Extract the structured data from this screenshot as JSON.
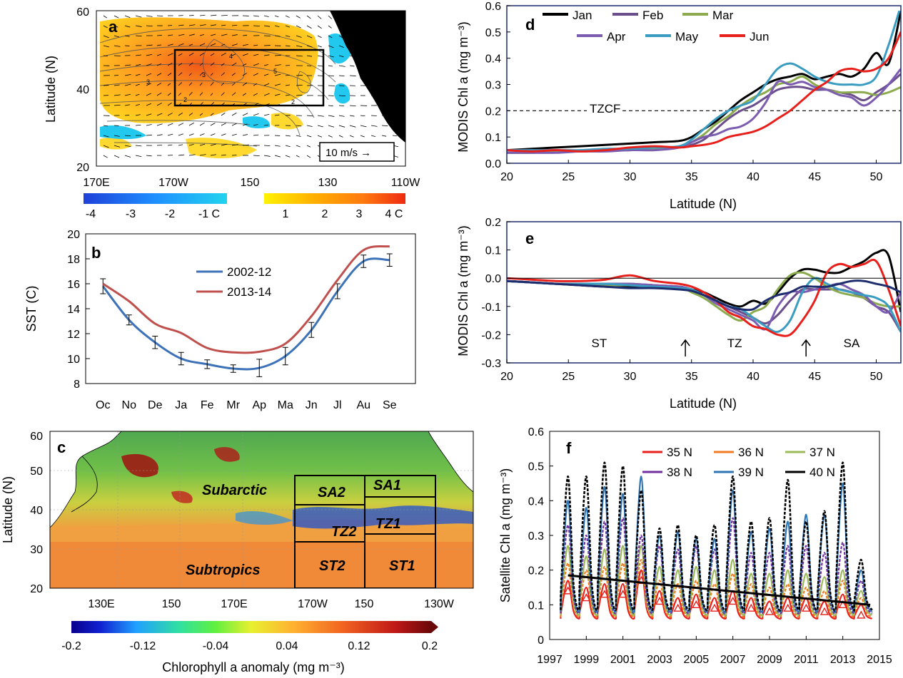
{
  "chart_data": [
    {
      "id": "a",
      "type": "heatmap",
      "panel_label": "a",
      "ylabel": "Latitude (N)",
      "xticks": [
        "170E",
        "170W",
        "150",
        "130",
        "110W"
      ],
      "yticks": [
        "60",
        "40",
        "20"
      ],
      "ylim": [
        20,
        60
      ],
      "xlim": [
        "160E",
        "110W"
      ],
      "box": {
        "lon": [
          "170W",
          "130W"
        ],
        "lat": [
          35,
          50
        ]
      },
      "arrow_key": "10 m/s →",
      "colorbar_neg": {
        "labels": [
          "-4",
          "-3",
          "-2",
          "-1 C"
        ],
        "range": [
          -4,
          -1
        ],
        "colors": [
          "#1e40d8",
          "#1e90ff",
          "#22d3ee"
        ]
      },
      "colorbar_pos": {
        "labels": [
          "1",
          "2",
          "3",
          "4 C"
        ],
        "range": [
          1,
          4
        ],
        "colors": [
          "#fff200",
          "#ffb000",
          "#ff7a10",
          "#ee2a10"
        ]
      },
      "contour_labels": [
        "3",
        "5",
        "3",
        "2",
        "2",
        "4"
      ]
    },
    {
      "id": "b",
      "type": "line",
      "panel_label": "b",
      "ylabel": "SST (C)",
      "categories": [
        "Oc",
        "No",
        "De",
        "Ja",
        "Fe",
        "Mr",
        "Ap",
        "Ma",
        "Jn",
        "Jl",
        "Au",
        "Se"
      ],
      "ylim": [
        8,
        20
      ],
      "yticks": [
        8,
        10,
        12,
        14,
        16,
        18,
        20
      ],
      "legend_position": "top-left",
      "series": [
        {
          "name": "2002-12",
          "color": "#3d72b8",
          "values": [
            15.8,
            13.1,
            11.3,
            10.0,
            9.55,
            9.2,
            9.25,
            10.2,
            12.3,
            15.4,
            17.8,
            17.9
          ],
          "err": [
            0.6,
            0.4,
            0.5,
            0.5,
            0.35,
            0.3,
            0.7,
            0.7,
            0.6,
            0.6,
            0.5,
            0.5
          ]
        },
        {
          "name": "2013-14",
          "color": "#c0504d",
          "values": [
            16.0,
            14.6,
            12.8,
            12.05,
            10.85,
            10.5,
            10.55,
            11.2,
            13.4,
            16.3,
            18.7,
            19.0
          ]
        }
      ]
    },
    {
      "id": "c",
      "type": "heatmap",
      "panel_label": "c",
      "ylabel": "Latitude (N)",
      "xticks": [
        "130E",
        "150",
        "170E",
        "170W",
        "150",
        "130W"
      ],
      "yticks": [
        "60",
        "50",
        "40",
        "30",
        "20"
      ],
      "ylim": [
        20,
        60
      ],
      "region_labels": [
        "Subarctic",
        "Subtropics",
        "SA2",
        "SA1",
        "TZ2",
        "TZ1",
        "ST2",
        "ST1"
      ],
      "colorbar": {
        "label": "Chlorophyll a anomaly (mg m⁻³)",
        "ticks": [
          "-0.2",
          "-0.12",
          "-0.04",
          "0.04",
          "0.12",
          "0.2"
        ],
        "range": [
          -0.2,
          0.2
        ]
      }
    },
    {
      "id": "d",
      "type": "line",
      "panel_label": "d",
      "xlabel": "Latitude (N)",
      "ylabel": "MODIS Chl a (mg m⁻³)",
      "xlim": [
        20,
        52
      ],
      "ylim": [
        0,
        0.6
      ],
      "xticks": [
        20,
        25,
        30,
        35,
        40,
        45,
        50
      ],
      "yticks": [
        0.0,
        0.1,
        0.2,
        0.3,
        0.4,
        0.5,
        0.6
      ],
      "hline": {
        "y": 0.2,
        "label": "TZCF"
      },
      "legend_position": "top",
      "x": [
        20,
        22,
        24,
        26,
        28,
        30,
        32,
        34,
        35,
        36,
        37,
        38,
        39,
        40,
        41,
        42,
        43,
        44,
        45,
        46,
        47,
        48,
        49,
        50,
        51,
        52
      ],
      "series": [
        {
          "name": "Jan",
          "color": "#000000",
          "values": [
            0.05,
            0.055,
            0.06,
            0.065,
            0.07,
            0.075,
            0.08,
            0.085,
            0.1,
            0.13,
            0.16,
            0.2,
            0.24,
            0.27,
            0.3,
            0.32,
            0.33,
            0.34,
            0.32,
            0.33,
            0.34,
            0.33,
            0.36,
            0.42,
            0.38,
            0.58
          ]
        },
        {
          "name": "Feb",
          "color": "#6b4f8c",
          "values": [
            0.04,
            0.04,
            0.045,
            0.045,
            0.05,
            0.05,
            0.055,
            0.06,
            0.07,
            0.09,
            0.13,
            0.17,
            0.2,
            0.22,
            0.25,
            0.28,
            0.29,
            0.29,
            0.28,
            0.28,
            0.27,
            0.26,
            0.24,
            0.27,
            0.3,
            0.34
          ]
        },
        {
          "name": "Mar",
          "color": "#8cab4e",
          "values": [
            0.04,
            0.04,
            0.045,
            0.045,
            0.05,
            0.05,
            0.055,
            0.06,
            0.08,
            0.11,
            0.15,
            0.18,
            0.22,
            0.25,
            0.27,
            0.3,
            0.31,
            0.33,
            0.3,
            0.28,
            0.27,
            0.27,
            0.27,
            0.26,
            0.27,
            0.29
          ]
        },
        {
          "name": "Apr",
          "color": "#7b5cb0",
          "values": [
            0.04,
            0.04,
            0.04,
            0.045,
            0.045,
            0.05,
            0.05,
            0.06,
            0.08,
            0.1,
            0.11,
            0.13,
            0.14,
            0.17,
            0.23,
            0.31,
            0.3,
            0.31,
            0.29,
            0.28,
            0.26,
            0.25,
            0.22,
            0.25,
            0.3,
            0.36
          ]
        },
        {
          "name": "May",
          "color": "#3a9cc0",
          "values": [
            0.05,
            0.05,
            0.05,
            0.05,
            0.055,
            0.055,
            0.06,
            0.065,
            0.09,
            0.13,
            0.17,
            0.2,
            0.22,
            0.24,
            0.3,
            0.36,
            0.38,
            0.36,
            0.33,
            0.31,
            0.3,
            0.3,
            0.3,
            0.33,
            0.45,
            0.6
          ]
        },
        {
          "name": "Jun",
          "color": "#e8201c",
          "values": [
            0.05,
            0.045,
            0.05,
            0.045,
            0.05,
            0.06,
            0.065,
            0.06,
            0.065,
            0.07,
            0.08,
            0.1,
            0.11,
            0.12,
            0.14,
            0.17,
            0.2,
            0.24,
            0.28,
            0.31,
            0.35,
            0.36,
            0.35,
            0.36,
            0.4,
            0.5
          ]
        }
      ]
    },
    {
      "id": "e",
      "type": "line",
      "panel_label": "e",
      "xlabel": "Latitude (N)",
      "ylabel": "MODIS Chl a (mg m⁻³)",
      "xlim": [
        20,
        52
      ],
      "ylim": [
        -0.3,
        0.2
      ],
      "xticks": [
        20,
        25,
        30,
        35,
        40,
        45,
        50
      ],
      "yticks": [
        -0.3,
        -0.2,
        -0.1,
        0.0,
        0.1,
        0.2
      ],
      "zone_labels": [
        {
          "text": "ST",
          "x": 27.5
        },
        {
          "text": "TZ",
          "x": 38.5
        },
        {
          "text": "SA",
          "x": 48
        }
      ],
      "zone_arrows": [
        34.5,
        44.3
      ],
      "x": [
        20,
        22,
        24,
        26,
        28,
        30,
        32,
        34,
        35,
        36,
        37,
        38,
        39,
        40,
        41,
        42,
        43,
        44,
        45,
        46,
        47,
        48,
        49,
        50,
        51,
        52
      ],
      "series": [
        {
          "name": "Jan",
          "color": "#000000",
          "values": [
            -0.01,
            -0.015,
            -0.02,
            -0.025,
            -0.03,
            -0.03,
            -0.03,
            -0.03,
            -0.04,
            -0.05,
            -0.07,
            -0.09,
            -0.1,
            -0.08,
            -0.09,
            -0.05,
            0.0,
            0.03,
            0.03,
            0.02,
            0.02,
            0.04,
            0.06,
            0.09,
            0.08,
            -0.12
          ]
        },
        {
          "name": "Feb",
          "color": "#6b4f8c",
          "values": [
            -0.01,
            -0.015,
            -0.02,
            -0.02,
            -0.02,
            -0.02,
            -0.025,
            -0.03,
            -0.04,
            -0.06,
            -0.08,
            -0.1,
            -0.12,
            -0.14,
            -0.16,
            -0.13,
            -0.08,
            -0.04,
            -0.04,
            -0.04,
            -0.04,
            -0.05,
            -0.07,
            -0.1,
            -0.12,
            -0.19
          ]
        },
        {
          "name": "Mar",
          "color": "#8cab4e",
          "values": [
            -0.01,
            -0.015,
            -0.02,
            -0.02,
            -0.025,
            -0.025,
            -0.03,
            -0.03,
            -0.05,
            -0.07,
            -0.1,
            -0.13,
            -0.15,
            -0.12,
            -0.1,
            -0.04,
            0.01,
            0.02,
            0.0,
            -0.03,
            -0.05,
            -0.06,
            -0.07,
            -0.09,
            -0.1,
            -0.1
          ]
        },
        {
          "name": "Apr",
          "color": "#7b5cb0",
          "values": [
            -0.01,
            -0.015,
            -0.02,
            -0.02,
            -0.02,
            -0.02,
            -0.025,
            -0.03,
            -0.04,
            -0.06,
            -0.09,
            -0.11,
            -0.13,
            -0.15,
            -0.18,
            -0.1,
            -0.05,
            -0.05,
            -0.04,
            -0.03,
            -0.02,
            -0.04,
            -0.06,
            -0.1,
            -0.12,
            -0.05
          ]
        },
        {
          "name": "May",
          "color": "#3a9cc0",
          "values": [
            -0.01,
            -0.015,
            -0.02,
            -0.02,
            -0.02,
            -0.025,
            -0.03,
            -0.035,
            -0.04,
            -0.06,
            -0.08,
            -0.1,
            -0.11,
            -0.14,
            -0.17,
            -0.19,
            -0.15,
            -0.05,
            0.0,
            -0.02,
            -0.04,
            -0.05,
            -0.06,
            -0.07,
            -0.1,
            -0.19
          ]
        },
        {
          "name": "Jun",
          "color": "#e8201c",
          "values": [
            0.0,
            -0.005,
            -0.01,
            -0.01,
            -0.005,
            0.01,
            -0.01,
            -0.02,
            -0.03,
            -0.05,
            -0.08,
            -0.12,
            -0.14,
            -0.17,
            -0.18,
            -0.2,
            -0.2,
            -0.15,
            -0.08,
            0.02,
            0.05,
            0.04,
            0.05,
            0.06,
            -0.04,
            -0.17
          ]
        },
        {
          "name": "",
          "color": "#1e2d6e",
          "values": [
            -0.01,
            -0.015,
            -0.02,
            -0.025,
            -0.03,
            -0.035,
            -0.035,
            -0.04,
            -0.045,
            -0.06,
            -0.08,
            -0.1,
            -0.11,
            -0.11,
            -0.08,
            -0.06,
            -0.05,
            -0.03,
            -0.03,
            -0.03,
            -0.02,
            -0.01,
            -0.01,
            -0.02,
            -0.03,
            -0.05
          ]
        }
      ]
    },
    {
      "id": "f",
      "type": "line",
      "panel_label": "f",
      "ylabel": "Satellite Chl a (mg m⁻³)",
      "xlim": [
        1997,
        2015
      ],
      "ylim": [
        0,
        0.6
      ],
      "xticks": [
        1997,
        1999,
        2001,
        2003,
        2005,
        2007,
        2009,
        2011,
        2013,
        2015
      ],
      "yticks": [
        0,
        0.1,
        0.2,
        0.3,
        0.4,
        0.5,
        0.6
      ],
      "legend_position": "top-right",
      "years": [
        1998,
        1999,
        2000,
        2001,
        2002,
        2003,
        2004,
        2005,
        2006,
        2007,
        2008,
        2009,
        2010,
        2011,
        2012,
        2013,
        2014
      ],
      "series": [
        {
          "name": "35 N",
          "color": "#e8201c",
          "peaks": [
            0.17,
            0.15,
            0.16,
            0.16,
            0.2,
            0.14,
            0.12,
            0.13,
            0.12,
            0.14,
            0.12,
            0.11,
            0.12,
            0.12,
            0.11,
            0.13,
            0.1
          ],
          "trough": 0.06
        },
        {
          "name": "36 N",
          "color": "#f07b22",
          "peaks": [
            0.22,
            0.2,
            0.21,
            0.22,
            0.23,
            0.17,
            0.16,
            0.17,
            0.16,
            0.19,
            0.16,
            0.15,
            0.16,
            0.15,
            0.14,
            0.17,
            0.12
          ],
          "trough": 0.065
        },
        {
          "name": "37 N",
          "color": "#9bbb59",
          "peaks": [
            0.27,
            0.24,
            0.26,
            0.27,
            0.27,
            0.21,
            0.2,
            0.21,
            0.2,
            0.23,
            0.19,
            0.19,
            0.2,
            0.19,
            0.18,
            0.2,
            0.14
          ],
          "trough": 0.07
        },
        {
          "name": "38 N",
          "color": "#7030a0",
          "peaks": [
            0.33,
            0.3,
            0.34,
            0.35,
            0.3,
            0.27,
            0.26,
            0.27,
            0.26,
            0.35,
            0.25,
            0.25,
            0.27,
            0.27,
            0.25,
            0.28,
            0.17
          ],
          "trough": 0.075
        },
        {
          "name": "39 N",
          "color": "#2e75b6",
          "peaks": [
            0.4,
            0.38,
            0.44,
            0.42,
            0.47,
            0.3,
            0.31,
            0.29,
            0.29,
            0.43,
            0.31,
            0.32,
            0.34,
            0.36,
            0.36,
            0.45,
            0.2
          ],
          "trough": 0.08
        },
        {
          "name": "40 N",
          "color": "#000000",
          "peaks": [
            0.47,
            0.47,
            0.51,
            0.5,
            0.43,
            0.32,
            0.33,
            0.3,
            0.33,
            0.47,
            0.34,
            0.35,
            0.46,
            0.34,
            0.37,
            0.51,
            0.23
          ],
          "trough": 0.085
        }
      ],
      "trend": {
        "x": [
          1998,
          2014.5
        ],
        "y": [
          0.185,
          0.1
        ],
        "color": "#000000"
      }
    }
  ]
}
